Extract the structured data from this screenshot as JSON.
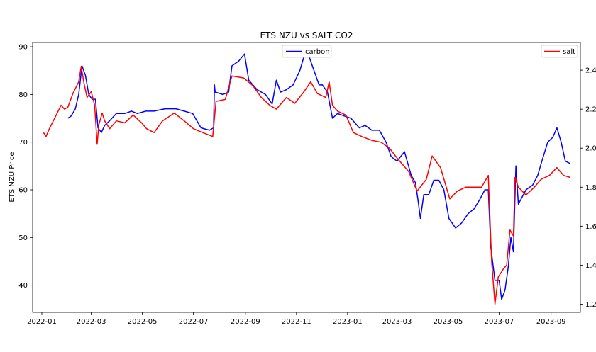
{
  "chart_data": {
    "type": "line",
    "title": "ETS NZU vs SALT CO2",
    "xlabel": "",
    "ylabel": "ETS NZU Price",
    "y2label": "",
    "xlim": [
      "2021-12-21",
      "2023-10-06"
    ],
    "ylim": [
      34.3,
      90.9
    ],
    "y2lim": [
      1.158,
      2.542
    ],
    "x_ticks": [
      "2022-01",
      "2022-03",
      "2022-05",
      "2022-07",
      "2022-09",
      "2022-11",
      "2023-01",
      "2023-03",
      "2023-05",
      "2023-07",
      "2023-09"
    ],
    "y_ticks": [
      40,
      50,
      60,
      70,
      80,
      90
    ],
    "y2_ticks": [
      "1.2",
      "1.4",
      "1.6",
      "1.8",
      "2.0",
      "2.2",
      "2.4"
    ],
    "grid": false,
    "legends": [
      {
        "entries": [
          "carbon"
        ],
        "placement": "top-center"
      },
      {
        "entries": [
          "salt"
        ],
        "placement": "top-right"
      }
    ],
    "series": [
      {
        "name": "carbon",
        "axis": "left",
        "color": "#0000ff",
        "points": [
          [
            "2022-02-01",
            75
          ],
          [
            "2022-02-05",
            75.5
          ],
          [
            "2022-02-10",
            77
          ],
          [
            "2022-02-14",
            80
          ],
          [
            "2022-02-18",
            86
          ],
          [
            "2022-02-22",
            84
          ],
          [
            "2022-02-26",
            80
          ],
          [
            "2022-03-02",
            79
          ],
          [
            "2022-03-06",
            79
          ],
          [
            "2022-03-09",
            73
          ],
          [
            "2022-03-13",
            72
          ],
          [
            "2022-03-17",
            73.5
          ],
          [
            "2022-03-23",
            74.5
          ],
          [
            "2022-03-31",
            76
          ],
          [
            "2022-04-10",
            76
          ],
          [
            "2022-04-18",
            76.5
          ],
          [
            "2022-04-25",
            76
          ],
          [
            "2022-05-05",
            76.5
          ],
          [
            "2022-05-15",
            76.5
          ],
          [
            "2022-05-28",
            77
          ],
          [
            "2022-06-10",
            77
          ],
          [
            "2022-06-20",
            76.5
          ],
          [
            "2022-06-30",
            76
          ],
          [
            "2022-07-10",
            73
          ],
          [
            "2022-07-20",
            72.5
          ],
          [
            "2022-07-25",
            73
          ],
          [
            "2022-07-26",
            82
          ],
          [
            "2022-07-27",
            80.5
          ],
          [
            "2022-08-05",
            80
          ],
          [
            "2022-08-12",
            80.5
          ],
          [
            "2022-08-16",
            86
          ],
          [
            "2022-08-24",
            87
          ],
          [
            "2022-08-31",
            88.5
          ],
          [
            "2022-09-05",
            83
          ],
          [
            "2022-09-15",
            81
          ],
          [
            "2022-09-25",
            80
          ],
          [
            "2022-10-03",
            78
          ],
          [
            "2022-10-08",
            83
          ],
          [
            "2022-10-13",
            80.5
          ],
          [
            "2022-10-20",
            81
          ],
          [
            "2022-10-28",
            82
          ],
          [
            "2022-11-05",
            85
          ],
          [
            "2022-11-10",
            88
          ],
          [
            "2022-11-16",
            88
          ],
          [
            "2022-11-22",
            85
          ],
          [
            "2022-11-28",
            82
          ],
          [
            "2022-12-02",
            82
          ],
          [
            "2022-12-08",
            80.5
          ],
          [
            "2022-12-14",
            75
          ],
          [
            "2022-12-20",
            76
          ],
          [
            "2022-12-28",
            75.5
          ],
          [
            "2023-01-05",
            75
          ],
          [
            "2023-01-15",
            73
          ],
          [
            "2023-01-22",
            73.5
          ],
          [
            "2023-01-30",
            72.5
          ],
          [
            "2023-02-08",
            72.5
          ],
          [
            "2023-02-16",
            70
          ],
          [
            "2023-02-22",
            67
          ],
          [
            "2023-03-01",
            66
          ],
          [
            "2023-03-10",
            68
          ],
          [
            "2023-03-18",
            63
          ],
          [
            "2023-03-23",
            61.5
          ],
          [
            "2023-03-26",
            58
          ],
          [
            "2023-03-29",
            54
          ],
          [
            "2023-04-02",
            59
          ],
          [
            "2023-04-08",
            59
          ],
          [
            "2023-04-14",
            62
          ],
          [
            "2023-04-20",
            62
          ],
          [
            "2023-04-26",
            60
          ],
          [
            "2023-05-02",
            54
          ],
          [
            "2023-05-10",
            52
          ],
          [
            "2023-05-17",
            53
          ],
          [
            "2023-05-25",
            55
          ],
          [
            "2023-06-01",
            56
          ],
          [
            "2023-06-08",
            58
          ],
          [
            "2023-06-14",
            60
          ],
          [
            "2023-06-18",
            60
          ],
          [
            "2023-06-21",
            48
          ],
          [
            "2023-06-26",
            41
          ],
          [
            "2023-07-01",
            41
          ],
          [
            "2023-07-04",
            37
          ],
          [
            "2023-07-08",
            39
          ],
          [
            "2023-07-12",
            44
          ],
          [
            "2023-07-15",
            50
          ],
          [
            "2023-07-18",
            47
          ],
          [
            "2023-07-21",
            65
          ],
          [
            "2023-07-24",
            57
          ],
          [
            "2023-08-02",
            60
          ],
          [
            "2023-08-10",
            61
          ],
          [
            "2023-08-16",
            63
          ],
          [
            "2023-08-21",
            66
          ],
          [
            "2023-08-28",
            70
          ],
          [
            "2023-09-03",
            71
          ],
          [
            "2023-09-08",
            73
          ],
          [
            "2023-09-13",
            70
          ],
          [
            "2023-09-18",
            66
          ],
          [
            "2023-09-24",
            65.5
          ]
        ]
      },
      {
        "name": "salt",
        "axis": "right",
        "color": "#ff0000",
        "points": [
          [
            "2022-01-03",
            2.08
          ],
          [
            "2022-01-06",
            2.06
          ],
          [
            "2022-01-10",
            2.1
          ],
          [
            "2022-01-17",
            2.16
          ],
          [
            "2022-01-24",
            2.22
          ],
          [
            "2022-01-28",
            2.2
          ],
          [
            "2022-02-01",
            2.21
          ],
          [
            "2022-02-07",
            2.28
          ],
          [
            "2022-02-14",
            2.34
          ],
          [
            "2022-02-17",
            2.42
          ],
          [
            "2022-02-20",
            2.34
          ],
          [
            "2022-02-24",
            2.26
          ],
          [
            "2022-03-01",
            2.29
          ],
          [
            "2022-03-05",
            2.22
          ],
          [
            "2022-03-08",
            2.02
          ],
          [
            "2022-03-10",
            2.12
          ],
          [
            "2022-03-14",
            2.18
          ],
          [
            "2022-03-17",
            2.14
          ],
          [
            "2022-03-23",
            2.1
          ],
          [
            "2022-03-31",
            2.14
          ],
          [
            "2022-04-10",
            2.13
          ],
          [
            "2022-04-20",
            2.17
          ],
          [
            "2022-04-30",
            2.13
          ],
          [
            "2022-05-06",
            2.1
          ],
          [
            "2022-05-15",
            2.08
          ],
          [
            "2022-05-25",
            2.14
          ],
          [
            "2022-06-08",
            2.18
          ],
          [
            "2022-06-20",
            2.14
          ],
          [
            "2022-07-01",
            2.1
          ],
          [
            "2022-07-12",
            2.08
          ],
          [
            "2022-07-24",
            2.06
          ],
          [
            "2022-07-28",
            2.24
          ],
          [
            "2022-08-08",
            2.25
          ],
          [
            "2022-08-16",
            2.37
          ],
          [
            "2022-08-30",
            2.36
          ],
          [
            "2022-09-10",
            2.32
          ],
          [
            "2022-09-20",
            2.26
          ],
          [
            "2022-09-30",
            2.22
          ],
          [
            "2022-10-08",
            2.2
          ],
          [
            "2022-10-20",
            2.26
          ],
          [
            "2022-10-30",
            2.23
          ],
          [
            "2022-11-10",
            2.29
          ],
          [
            "2022-11-18",
            2.34
          ],
          [
            "2022-11-26",
            2.28
          ],
          [
            "2022-12-06",
            2.26
          ],
          [
            "2022-12-10",
            2.34
          ],
          [
            "2022-12-14",
            2.22
          ],
          [
            "2022-12-20",
            2.19
          ],
          [
            "2022-12-30",
            2.17
          ],
          [
            "2023-01-08",
            2.08
          ],
          [
            "2023-01-18",
            2.06
          ],
          [
            "2023-01-30",
            2.04
          ],
          [
            "2023-02-10",
            2.03
          ],
          [
            "2023-02-20",
            2.0
          ],
          [
            "2023-03-01",
            1.95
          ],
          [
            "2023-03-15",
            1.88
          ],
          [
            "2023-03-25",
            1.78
          ],
          [
            "2023-04-05",
            1.84
          ],
          [
            "2023-04-12",
            1.96
          ],
          [
            "2023-04-22",
            1.9
          ],
          [
            "2023-05-03",
            1.74
          ],
          [
            "2023-05-12",
            1.78
          ],
          [
            "2023-05-22",
            1.8
          ],
          [
            "2023-06-01",
            1.8
          ],
          [
            "2023-06-10",
            1.8
          ],
          [
            "2023-06-18",
            1.86
          ],
          [
            "2023-06-22",
            1.42
          ],
          [
            "2023-06-26",
            1.2
          ],
          [
            "2023-06-30",
            1.34
          ],
          [
            "2023-07-06",
            1.38
          ],
          [
            "2023-07-10",
            1.4
          ],
          [
            "2023-07-14",
            1.58
          ],
          [
            "2023-07-18",
            1.55
          ],
          [
            "2023-07-20",
            1.85
          ],
          [
            "2023-07-24",
            1.8
          ],
          [
            "2023-08-02",
            1.76
          ],
          [
            "2023-08-12",
            1.8
          ],
          [
            "2023-08-20",
            1.84
          ],
          [
            "2023-08-30",
            1.86
          ],
          [
            "2023-09-08",
            1.9
          ],
          [
            "2023-09-16",
            1.86
          ],
          [
            "2023-09-24",
            1.85
          ]
        ]
      }
    ]
  }
}
